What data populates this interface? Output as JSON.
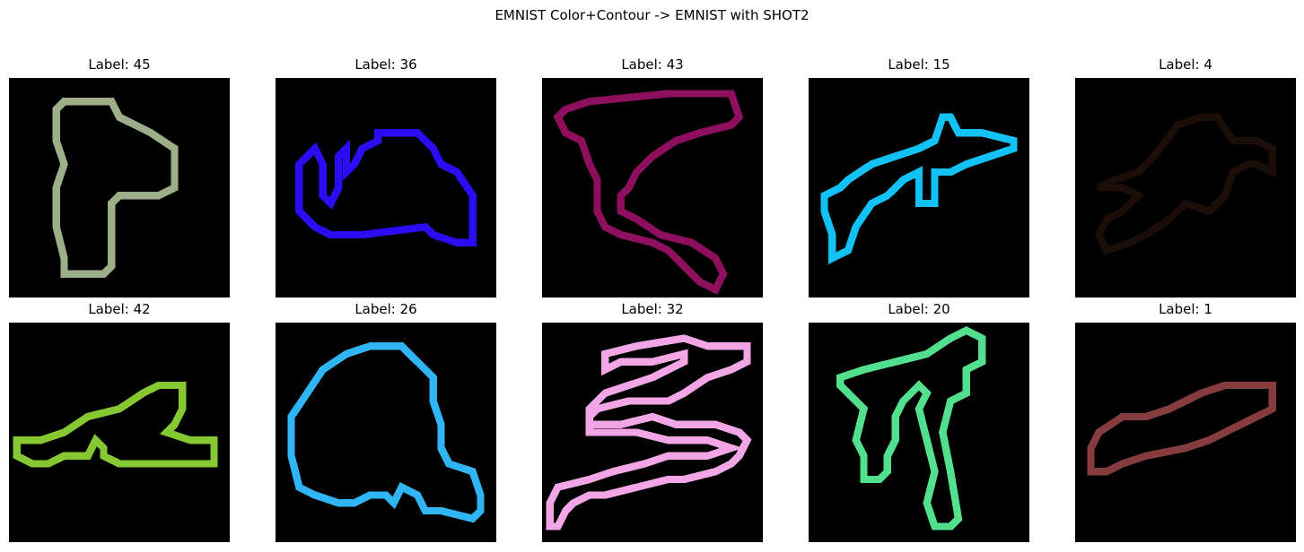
{
  "figure": {
    "title": "EMNIST Color+Contour -> EMNIST with SHOT2"
  },
  "panels": [
    {
      "label": "Label: 45",
      "color": "#9caf88"
    },
    {
      "label": "Label: 36",
      "color": "#2a0cf5"
    },
    {
      "label": "Label: 43",
      "color": "#8e0f5e"
    },
    {
      "label": "Label: 15",
      "color": "#12c2f5"
    },
    {
      "label": "Label: 4",
      "color": "#1b0d07"
    },
    {
      "label": "Label: 42",
      "color": "#86c832"
    },
    {
      "label": "Label: 26",
      "color": "#2fb5f4"
    },
    {
      "label": "Label: 32",
      "color": "#f2a6e6"
    },
    {
      "label": "Label: 20",
      "color": "#52e08e"
    },
    {
      "label": "Label: 1",
      "color": "#863c3e"
    }
  ]
}
